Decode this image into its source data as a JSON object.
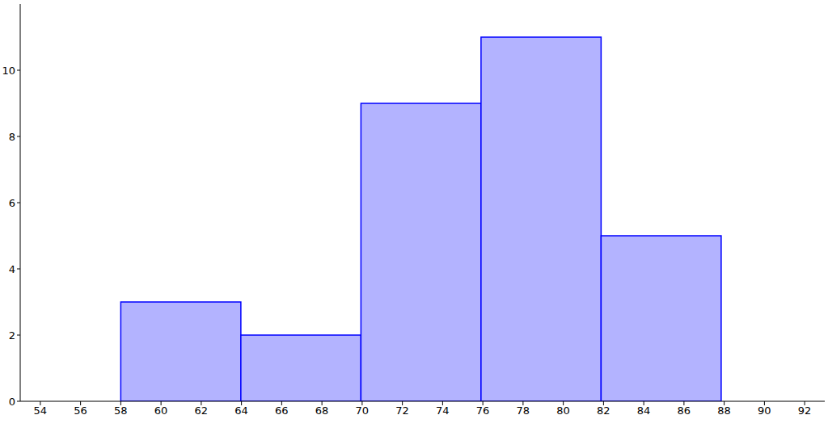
{
  "chart_data": {
    "type": "histogram",
    "bins": [
      58,
      63.97,
      69.94,
      75.91,
      81.88,
      87.85
    ],
    "values": [
      3,
      2,
      9,
      11,
      5
    ],
    "color": "#b3b3ff",
    "xlim": [
      53,
      93
    ],
    "xticks": [
      54,
      56,
      58,
      60,
      62,
      64,
      66,
      68,
      70,
      72,
      74,
      76,
      78,
      80,
      82,
      84,
      86,
      88,
      90,
      92
    ],
    "ylim": [
      0,
      12
    ],
    "yticks": [
      0,
      2,
      4,
      6,
      8,
      10
    ],
    "grid": false
  }
}
